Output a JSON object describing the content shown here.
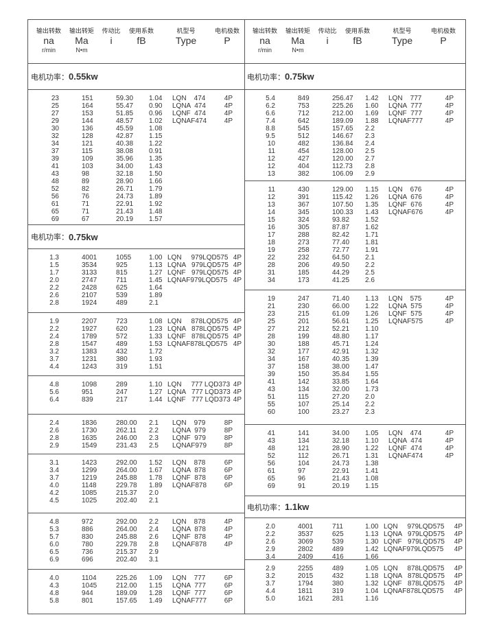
{
  "headers": [
    {
      "cn": "输出转数",
      "sym": "na",
      "unit": "r/min"
    },
    {
      "cn": "输出转矩",
      "sym": "Ma",
      "unit": "N•m"
    },
    {
      "cn": "传动比",
      "sym": "i",
      "unit": ""
    },
    {
      "cn": "使用系数",
      "sym": "fB",
      "unit": ""
    },
    {
      "cn": "机型号",
      "sym": "Type",
      "unit": ""
    },
    {
      "cn": "电机极数",
      "sym": "P",
      "unit": ""
    }
  ],
  "power_label": "电机功率：",
  "left": [
    {
      "kind": "power",
      "value": "0.55kw"
    },
    {
      "kind": "group",
      "rows": [
        [
          "23",
          "151",
          "59.30",
          "1.04",
          "LQN    474",
          "4P"
        ],
        [
          "25",
          "164",
          "55.47",
          "0.90",
          "LQNA  474",
          "4P"
        ],
        [
          "27",
          "153",
          "51.85",
          "0.96",
          "LQNF  474",
          "4P"
        ],
        [
          "29",
          "144",
          "48.57",
          "1.02",
          "LQNAF474",
          "4P"
        ],
        [
          "30",
          "136",
          "45.59",
          "1.08",
          "",
          ""
        ],
        [
          "32",
          "128",
          "42.87",
          "1.15",
          "",
          ""
        ],
        [
          "34",
          "121",
          "40.38",
          "1.22",
          "",
          ""
        ],
        [
          "37",
          "115",
          "38.08",
          "0.91",
          "",
          ""
        ],
        [
          "39",
          "109",
          "35.96",
          "1.35",
          "",
          ""
        ],
        [
          "41",
          "103",
          "34.00",
          "1.43",
          "",
          ""
        ],
        [
          "43",
          "98",
          "32.18",
          "1.50",
          "",
          ""
        ],
        [
          "48",
          "89",
          "28.90",
          "1.66",
          "",
          ""
        ],
        [
          "52",
          "82",
          "26.71",
          "1.79",
          "",
          ""
        ],
        [
          "56",
          "76",
          "24.73",
          "1.89",
          "",
          ""
        ],
        [
          "61",
          "71",
          "22.91",
          "1.92",
          "",
          ""
        ],
        [
          "65",
          "71",
          "21.43",
          "1.48",
          "",
          ""
        ],
        [
          "69",
          "67",
          "20.19",
          "1.57",
          "",
          ""
        ]
      ]
    },
    {
      "kind": "power",
      "value": "0.75kw"
    },
    {
      "kind": "group",
      "lqd": true,
      "rows": [
        [
          "1.3",
          "4001",
          "1055",
          "1.00",
          "LQN     979LQD575",
          "4P"
        ],
        [
          "1.5",
          "3534",
          "925",
          "1.13",
          "LQNA   979LQD575",
          "4P"
        ],
        [
          "1.7",
          "3133",
          "815",
          "1.27",
          "LQNF   979LQD575",
          "4P"
        ],
        [
          "2.0",
          "2747",
          "711",
          "1.45",
          "LQNAF979LQD575",
          "4P"
        ],
        [
          "2.2",
          "2428",
          "625",
          "1.64",
          "",
          ""
        ],
        [
          "2.6",
          "2107",
          "539",
          "1.89",
          "",
          ""
        ],
        [
          "2.8",
          "1924",
          "489",
          "2.1",
          "",
          ""
        ]
      ]
    },
    {
      "kind": "group",
      "lqd": true,
      "rows": [
        [
          "1.9",
          "2207",
          "723",
          "1.08",
          "LQN     878LQD575",
          "4P"
        ],
        [
          "2.2",
          "1927",
          "620",
          "1.23",
          "LQNA   878LQD575",
          "4P"
        ],
        [
          "2.4",
          "1789",
          "572",
          "1.33",
          "LQNF   878LQD575",
          "4P"
        ],
        [
          "2.8",
          "1547",
          "489",
          "1.53",
          "LQNAF878LQD575",
          "4P"
        ],
        [
          "3.2",
          "1383",
          "432",
          "1.72",
          "",
          ""
        ],
        [
          "3.7",
          "1231",
          "380",
          "1.93",
          "",
          ""
        ],
        [
          "4.4",
          "1243",
          "319",
          "1.51",
          "",
          ""
        ]
      ]
    },
    {
      "kind": "group",
      "lqd": true,
      "rows": [
        [
          "4.8",
          "1098",
          "289",
          "1.10",
          "LQN     777 LQD373",
          "4P"
        ],
        [
          "5.6",
          "951",
          "247",
          "1.27",
          "LQNA   777 LQD373",
          "4P"
        ],
        [
          "6.4",
          "839",
          "217",
          "1.44",
          "LQNF   777 LQD373",
          "4P"
        ]
      ]
    },
    {
      "kind": "group",
      "rows": [
        [
          "2.4",
          "1836",
          "280.00",
          "2.1",
          "LQN    979",
          "8P"
        ],
        [
          "2.6",
          "1730",
          "262.11",
          "2.2",
          "LQNA  979",
          "8P"
        ],
        [
          "2.8",
          "1635",
          "246.00",
          "2.3",
          "LQNF  979",
          "8P"
        ],
        [
          "2.9",
          "1549",
          "231.43",
          "2.5",
          "LQNAF979",
          "8P"
        ]
      ]
    },
    {
      "kind": "group",
      "rows": [
        [
          "3.1",
          "1423",
          "292.00",
          "1.52",
          "LQN    878",
          "6P"
        ],
        [
          "3.4",
          "1299",
          "264.00",
          "1.67",
          "LQNA  878",
          "6P"
        ],
        [
          "3.7",
          "1219",
          "245.88",
          "1.78",
          "LQNF  878",
          "6P"
        ],
        [
          "4.0",
          "1148",
          "229.78",
          "1.89",
          "LQNAF878",
          "6P"
        ],
        [
          "4.2",
          "1085",
          "215.37",
          "2.0",
          "",
          ""
        ],
        [
          "4.5",
          "1025",
          "202.40",
          "2.1",
          "",
          ""
        ]
      ]
    },
    {
      "kind": "group",
      "rows": [
        [
          "4.8",
          "972",
          "292.00",
          "2.2",
          "LQN    878",
          "4P"
        ],
        [
          "5.3",
          "886",
          "264.00",
          "2.4",
          "LQNA  878",
          "4P"
        ],
        [
          "5.7",
          "830",
          "245.88",
          "2.6",
          "LQNF  878",
          "4P"
        ],
        [
          "6.0",
          "780",
          "229.78",
          "2.8",
          "LQNAF878",
          "4P"
        ],
        [
          "6.5",
          "736",
          "215.37",
          "2.9",
          "",
          ""
        ],
        [
          "6.9",
          "696",
          "202.40",
          "3.1",
          "",
          ""
        ]
      ]
    },
    {
      "kind": "group",
      "rows": [
        [
          "4.0",
          "1104",
          "225.26",
          "1.09",
          "LQN    777",
          "6P"
        ],
        [
          "4.3",
          "1045",
          "212.00",
          "1.15",
          "LQNA  777",
          "6P"
        ],
        [
          "4.8",
          "944",
          "189.09",
          "1.28",
          "LQNF  777",
          "6P"
        ],
        [
          "5.8",
          "801",
          "157.65",
          "1.49",
          "LQNAF777",
          "6P"
        ]
      ]
    }
  ],
  "right": [
    {
      "kind": "power",
      "value": "0.75kw"
    },
    {
      "kind": "group",
      "rows": [
        [
          "5.4",
          "849",
          "256.47",
          "1.42",
          "LQN    777",
          "4P"
        ],
        [
          "6.2",
          "753",
          "225.26",
          "1.60",
          "LQNA  777",
          "4P"
        ],
        [
          "6.6",
          "712",
          "212.00",
          "1.69",
          "LQNF  777",
          "4P"
        ],
        [
          "7.4",
          "642",
          "189.09",
          "1.88",
          "LQNAF777",
          "4P"
        ],
        [
          "8.8",
          "545",
          "157.65",
          "2.2",
          "",
          ""
        ],
        [
          "9.5",
          "512",
          "146.67",
          "2.3",
          "",
          ""
        ],
        [
          "10",
          "482",
          "136.84",
          "2.4",
          "",
          ""
        ],
        [
          "11",
          "454",
          "128.00",
          "2.5",
          "",
          ""
        ],
        [
          "12",
          "427",
          "120.00",
          "2.7",
          "",
          ""
        ],
        [
          "12",
          "404",
          "112.73",
          "2.8",
          "",
          ""
        ],
        [
          "13",
          "382",
          "106.09",
          "2.9",
          "",
          ""
        ]
      ]
    },
    {
      "kind": "group",
      "rows": [
        [
          "11",
          "430",
          "129.00",
          "1.15",
          "LQN    676",
          "4P"
        ],
        [
          "12",
          "391",
          "115.42",
          "1.26",
          "LQNA  676",
          "4P"
        ],
        [
          "13",
          "367",
          "107.50",
          "1.35",
          "LQNF  676",
          "4P"
        ],
        [
          "14",
          "345",
          "100.33",
          "1.43",
          "LQNAF676",
          "4P"
        ],
        [
          "15",
          "324",
          "93.82",
          "1.52",
          "",
          ""
        ],
        [
          "16",
          "305",
          "87.87",
          "1.62",
          "",
          ""
        ],
        [
          "17",
          "288",
          "82.42",
          "1.71",
          "",
          ""
        ],
        [
          "18",
          "273",
          "77.40",
          "1.81",
          "",
          ""
        ],
        [
          "19",
          "258",
          "72.77",
          "1.91",
          "",
          ""
        ],
        [
          "22",
          "232",
          "64.50",
          "2.1",
          "",
          ""
        ],
        [
          "28",
          "206",
          "49.50",
          "2.2",
          "",
          ""
        ],
        [
          "31",
          "185",
          "44.29",
          "2.5",
          "",
          ""
        ],
        [
          "34",
          "173",
          "41.25",
          "2.6",
          "",
          ""
        ]
      ]
    },
    {
      "kind": "group",
      "rows": [
        [
          "19",
          "247",
          "71.40",
          "1.13",
          "LQN    575",
          "4P"
        ],
        [
          "21",
          "230",
          "66.00",
          "1.22",
          "LQNA  575",
          "4P"
        ],
        [
          "23",
          "215",
          "61.09",
          "1.26",
          "LQNF  575",
          "4P"
        ],
        [
          "25",
          "201",
          "56.61",
          "1.25",
          "LQNAF575",
          "4P"
        ],
        [
          "27",
          "212",
          "52.21",
          "1.10",
          "",
          ""
        ],
        [
          "28",
          "199",
          "48.80",
          "1.17",
          "",
          ""
        ],
        [
          "30",
          "188",
          "45.71",
          "1.24",
          "",
          ""
        ],
        [
          "32",
          "177",
          "42.91",
          "1.32",
          "",
          ""
        ],
        [
          "34",
          "167",
          "40.35",
          "1.39",
          "",
          ""
        ],
        [
          "37",
          "158",
          "38.00",
          "1.47",
          "",
          ""
        ],
        [
          "39",
          "150",
          "35.84",
          "1.55",
          "",
          ""
        ],
        [
          "41",
          "142",
          "33.85",
          "1.64",
          "",
          ""
        ],
        [
          "43",
          "134",
          "32.00",
          "1.73",
          "",
          ""
        ],
        [
          "51",
          "115",
          "27.20",
          "2.0",
          "",
          ""
        ],
        [
          "55",
          "107",
          "25.14",
          "2.2",
          "",
          ""
        ],
        [
          "60",
          "100",
          "23.27",
          "2.3",
          "",
          ""
        ]
      ]
    },
    {
      "kind": "group",
      "rows": [
        [
          "41",
          "141",
          "34.00",
          "1.05",
          "LQN    474",
          "4P"
        ],
        [
          "43",
          "134",
          "32.18",
          "1.10",
          "LQNA  474",
          "4P"
        ],
        [
          "48",
          "121",
          "28.90",
          "1.22",
          "LQNF  474",
          "4P"
        ],
        [
          "52",
          "112",
          "26.71",
          "1.31",
          "LQNAF474",
          "4P"
        ],
        [
          "56",
          "104",
          "24.73",
          "1.38",
          "",
          ""
        ],
        [
          "61",
          "97",
          "22.91",
          "1.41",
          "",
          ""
        ],
        [
          "65",
          "96",
          "21.43",
          "1.08",
          "",
          ""
        ],
        [
          "69",
          "91",
          "20.19",
          "1.15",
          "",
          ""
        ]
      ]
    },
    {
      "kind": "power",
      "value": "1.1kw"
    },
    {
      "kind": "group",
      "lqd": true,
      "rows": [
        [
          "2.0",
          "4001",
          "711",
          "1.00",
          "LQN     979LQD575",
          "4P"
        ],
        [
          "2.2",
          "3537",
          "625",
          "1.13",
          "LQNA   979LQD575",
          "4P"
        ],
        [
          "2.6",
          "3069",
          "539",
          "1.30",
          "LQNF   979LQD575",
          "4P"
        ],
        [
          "2.9",
          "2802",
          "489",
          "1.42",
          "LQNAF979LQD575",
          "4P"
        ],
        [
          "3.4",
          "2409",
          "416",
          "1.66",
          "",
          ""
        ]
      ]
    },
    {
      "kind": "group",
      "lqd": true,
      "rows": [
        [
          "2.9",
          "2255",
          "489",
          "1.05",
          "LQN     878LQD575",
          "4P"
        ],
        [
          "3.2",
          "2015",
          "432",
          "1.18",
          "LQNA   878LQD575",
          "4P"
        ],
        [
          "3.7",
          "1794",
          "380",
          "1.32",
          "LQNF   878LQD575",
          "4P"
        ],
        [
          "4.4",
          "1811",
          "319",
          "1.04",
          "LQNAF878LQD575",
          "4P"
        ],
        [
          "5.0",
          "1621",
          "281",
          "1.16",
          "",
          ""
        ]
      ]
    }
  ]
}
